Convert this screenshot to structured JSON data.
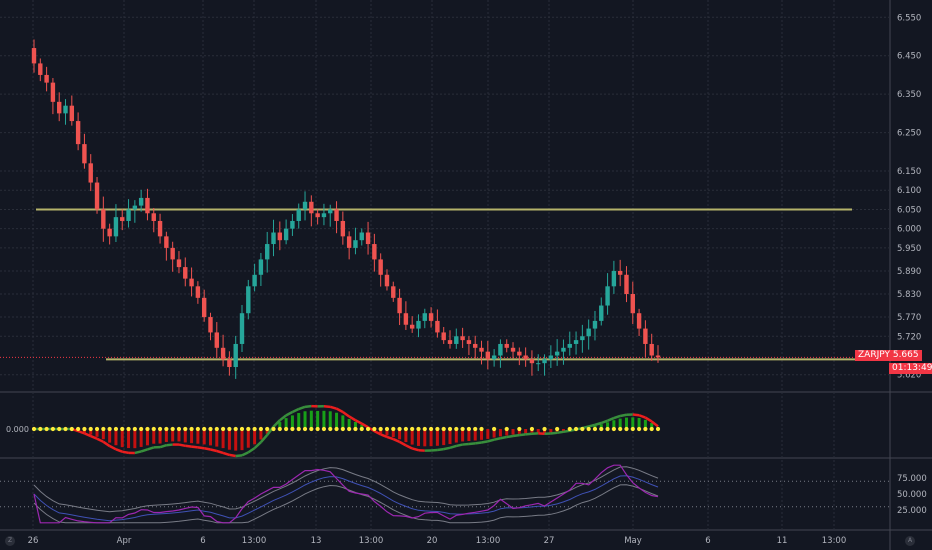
{
  "chart_data": {
    "type": "candlestick",
    "symbol": "ZARJPY",
    "last_price": "5.665",
    "countdown": "01:13:49",
    "last_price_color": "#f23645",
    "up_color": "#26a69a",
    "down_color": "#ef5350",
    "price_ticks": [
      "6.550",
      "6.450",
      "6.350",
      "6.250",
      "6.150",
      "6.100",
      "6.050",
      "6.000",
      "5.950",
      "5.890",
      "5.830",
      "5.770",
      "5.720",
      "5.620"
    ],
    "time_ticks": [
      "26",
      "Apr",
      "6",
      "13:00",
      "13",
      "13:00",
      "20",
      "13:00",
      "27",
      "May",
      "6",
      "11",
      "13:00"
    ],
    "resistance_level": 6.05,
    "support_level": 5.66,
    "level_line_color": "#b5b36a",
    "oscillator_zero_label": "0.000",
    "rsi_ticks": [
      "75.000",
      "50.000",
      "25.000"
    ],
    "rsi_levels": [
      70,
      30
    ],
    "closes": [
      6.43,
      6.4,
      6.38,
      6.33,
      6.3,
      6.32,
      6.28,
      6.22,
      6.17,
      6.12,
      6.05,
      6.0,
      5.98,
      6.03,
      6.02,
      6.05,
      6.06,
      6.08,
      6.04,
      6.02,
      5.98,
      5.95,
      5.92,
      5.9,
      5.87,
      5.85,
      5.82,
      5.77,
      5.73,
      5.69,
      5.66,
      5.64,
      5.7,
      5.78,
      5.85,
      5.88,
      5.92,
      5.96,
      5.99,
      5.97,
      6.0,
      6.02,
      6.05,
      6.07,
      6.04,
      6.03,
      6.04,
      6.05,
      6.02,
      5.98,
      5.95,
      5.97,
      5.99,
      5.96,
      5.92,
      5.88,
      5.85,
      5.82,
      5.78,
      5.75,
      5.74,
      5.76,
      5.78,
      5.76,
      5.73,
      5.71,
      5.7,
      5.72,
      5.71,
      5.7,
      5.69,
      5.68,
      5.66,
      5.67,
      5.7,
      5.69,
      5.68,
      5.67,
      5.66,
      5.65,
      5.65,
      5.66,
      5.67,
      5.68,
      5.69,
      5.7,
      5.71,
      5.72,
      5.74,
      5.76,
      5.8,
      5.85,
      5.89,
      5.88,
      5.83,
      5.78,
      5.74,
      5.7,
      5.67,
      5.665
    ],
    "indicator_colors": {
      "osc_up_line": "#388e3c",
      "osc_down_line": "#e91e1e",
      "osc_hist_up": "#18a018",
      "osc_hist_down": "#c41010",
      "osc_dots": "#ffeb3b",
      "rsi_line": "#9c27b0",
      "rsi_signal": "#3f51b5",
      "bands": "#787b86"
    }
  },
  "corners": {
    "left_icon": "Z",
    "right_icon": "A"
  }
}
